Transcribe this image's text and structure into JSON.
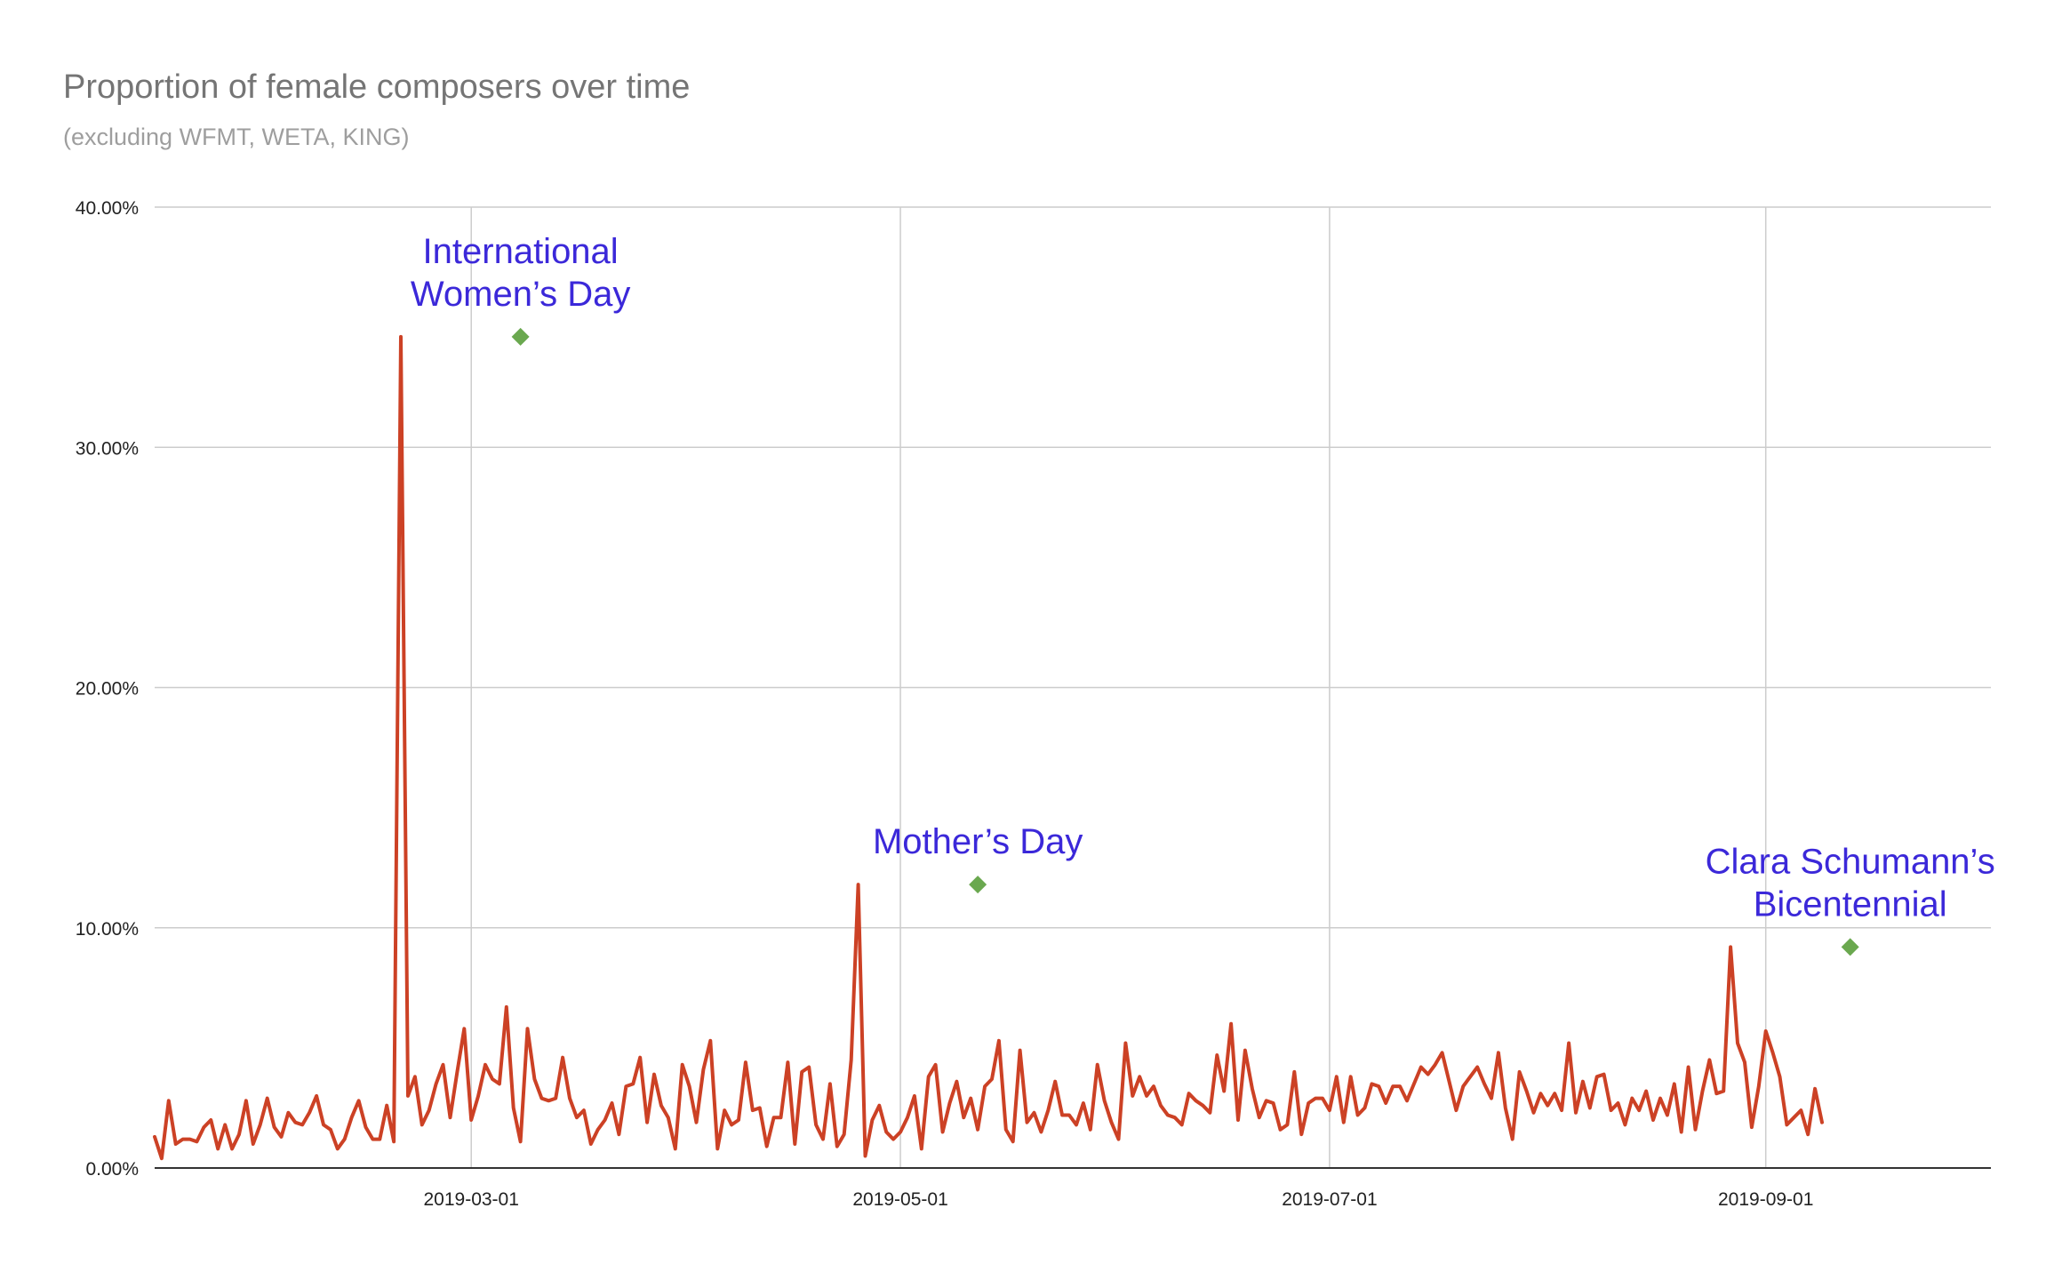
{
  "chart_data": {
    "type": "line",
    "title": "Proportion of female composers over time",
    "subtitle": "(excluding WFMT, WETA, KING)",
    "xlabel": "",
    "ylabel": "",
    "x_range": [
      "2019-01-15",
      "2019-10-03"
    ],
    "ylim": [
      0,
      0.4
    ],
    "y_ticks": [
      0,
      0.1,
      0.2,
      0.3,
      0.4
    ],
    "y_tick_labels": [
      "0.00%",
      "10.00%",
      "20.00%",
      "30.00%",
      "40.00%"
    ],
    "x_ticks": [
      "2019-03-01",
      "2019-05-01",
      "2019-07-01",
      "2019-09-01"
    ],
    "x_tick_labels": [
      "2019-03-01",
      "2019-05-01",
      "2019-07-01",
      "2019-09-01"
    ],
    "grid": true,
    "legend": "none",
    "colors": {
      "line": "#cc4125",
      "marker": "#6aa84f",
      "annotation": "#3b28d9",
      "grid": "#cccccc",
      "axis": "#333333"
    },
    "series": [
      {
        "start_date": "2019-01-15",
        "values": [
          0.013,
          0.004,
          0.028,
          0.01,
          0.012,
          0.012,
          0.011,
          0.017,
          0.02,
          0.008,
          0.018,
          0.008,
          0.014,
          0.028,
          0.01,
          0.018,
          0.029,
          0.017,
          0.013,
          0.023,
          0.019,
          0.018,
          0.023,
          0.03,
          0.018,
          0.016,
          0.008,
          0.012,
          0.021,
          0.028,
          0.017,
          0.012,
          0.012,
          0.026,
          0.011,
          0.346,
          0.03,
          0.038,
          0.018,
          0.024,
          0.035,
          0.043,
          0.021,
          0.04,
          0.058,
          0.02,
          0.03,
          0.043,
          0.037,
          0.035,
          0.067,
          0.025,
          0.011,
          0.058,
          0.037,
          0.029,
          0.028,
          0.029,
          0.046,
          0.029,
          0.021,
          0.024,
          0.01,
          0.016,
          0.02,
          0.027,
          0.014,
          0.034,
          0.035,
          0.046,
          0.019,
          0.039,
          0.026,
          0.021,
          0.008,
          0.043,
          0.034,
          0.019,
          0.041,
          0.053,
          0.008,
          0.024,
          0.018,
          0.02,
          0.044,
          0.024,
          0.025,
          0.009,
          0.021,
          0.021,
          0.044,
          0.01,
          0.04,
          0.042,
          0.018,
          0.012,
          0.035,
          0.009,
          0.014,
          0.045,
          0.118,
          0.005,
          0.02,
          0.026,
          0.015,
          0.012,
          0.015,
          0.021,
          0.03,
          0.008,
          0.038,
          0.043,
          0.015,
          0.027,
          0.036,
          0.021,
          0.029,
          0.016,
          0.034,
          0.037,
          0.053,
          0.016,
          0.011,
          0.049,
          0.019,
          0.023,
          0.015,
          0.024,
          0.036,
          0.022,
          0.022,
          0.018,
          0.027,
          0.016,
          0.043,
          0.028,
          0.019,
          0.012,
          0.052,
          0.03,
          0.038,
          0.03,
          0.034,
          0.026,
          0.022,
          0.021,
          0.018,
          0.031,
          0.028,
          0.026,
          0.023,
          0.047,
          0.032,
          0.06,
          0.02,
          0.049,
          0.033,
          0.021,
          0.028,
          0.027,
          0.016,
          0.018,
          0.04,
          0.014,
          0.027,
          0.029,
          0.029,
          0.024,
          0.038,
          0.019,
          0.038,
          0.022,
          0.025,
          0.035,
          0.034,
          0.027,
          0.034,
          0.034,
          0.028,
          0.035,
          0.042,
          0.039,
          0.043,
          0.048,
          0.036,
          0.024,
          0.034,
          0.038,
          0.042,
          0.035,
          0.029,
          0.048,
          0.025,
          0.012,
          0.04,
          0.032,
          0.023,
          0.031,
          0.026,
          0.031,
          0.024,
          0.052,
          0.023,
          0.036,
          0.025,
          0.038,
          0.039,
          0.024,
          0.027,
          0.018,
          0.029,
          0.024,
          0.032,
          0.02,
          0.029,
          0.022,
          0.035,
          0.015,
          0.042,
          0.016,
          0.032,
          0.045,
          0.031,
          0.032,
          0.092,
          0.052,
          0.044,
          0.017,
          0.034,
          0.057,
          0.048,
          0.038,
          0.018,
          0.021,
          0.024,
          0.014,
          0.033,
          0.019
        ]
      }
    ],
    "annotations": [
      {
        "date": "2019-03-08",
        "value": 0.346,
        "lines": [
          "International",
          "Women’s Day"
        ]
      },
      {
        "date": "2019-05-12",
        "value": 0.118,
        "lines": [
          "Mother’s Day"
        ]
      },
      {
        "date": "2019-09-13",
        "value": 0.092,
        "lines": [
          "Clara Schumann’s",
          "Bicentennial"
        ]
      }
    ]
  }
}
